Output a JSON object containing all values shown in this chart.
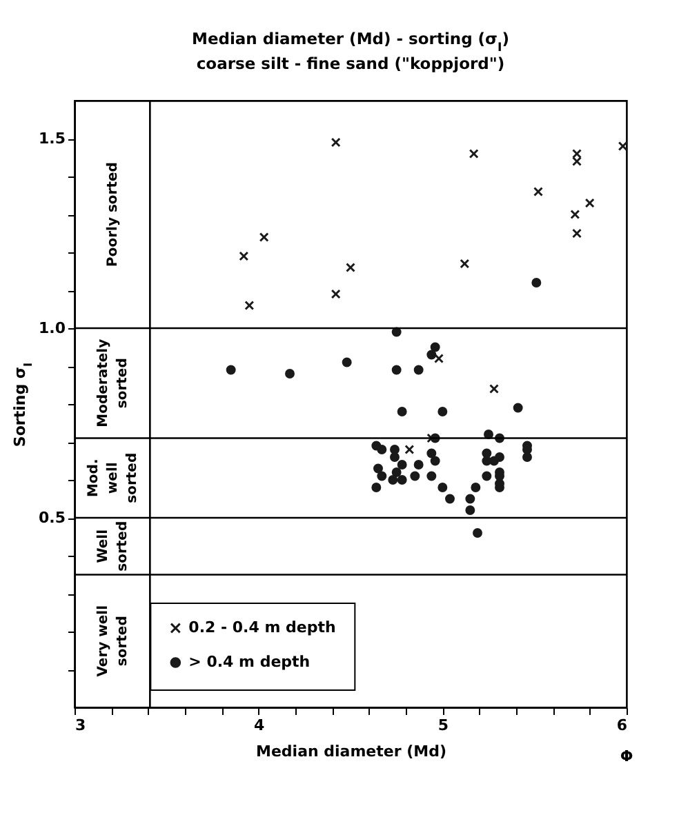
{
  "chart_data": {
    "type": "scatter",
    "title": [
      "Median diameter (Md) - sorting (σ$_{I}$)",
      "coarse silt - fine sand (\"koppjord\")"
    ],
    "xlabel": "Median diameter (Md)",
    "ylabel": "Sorting σ$_{I}$",
    "annotations": [
      "Φ",
      "Poorly sorted",
      "Moderately\nsorted",
      "Mod.\nwell\nsorted",
      "Well\nsorted",
      "Very well\nsorted"
    ],
    "xlim": [
      3,
      6
    ],
    "ylim": [
      0,
      1.6
    ],
    "xticks": [
      3,
      {
        "value": 3.2,
        "label": null
      },
      {
        "value": 3.4,
        "label": null
      },
      {
        "value": 3.6,
        "label": null
      },
      {
        "value": 3.8,
        "label": null
      },
      4,
      {
        "value": 4.2,
        "label": null
      },
      {
        "value": 4.4,
        "label": null
      },
      {
        "value": 4.6,
        "label": null
      },
      {
        "value": 4.8,
        "label": null
      },
      5,
      {
        "value": 5.2,
        "label": null
      },
      {
        "value": 5.4,
        "label": null
      },
      {
        "value": 5.6,
        "label": null
      },
      {
        "value": 5.8,
        "label": null
      },
      6
    ],
    "yticks": [
      {
        "value": 0.1,
        "label": null
      },
      {
        "value": 0.2,
        "label": null
      },
      {
        "value": 0.3,
        "label": null
      },
      {
        "value": 0.4,
        "label": null
      },
      0.5,
      {
        "value": 0.6,
        "label": null
      },
      {
        "value": 0.7,
        "label": null
      },
      {
        "value": 0.8,
        "label": null
      },
      {
        "value": 0.9,
        "label": null
      },
      {
        "value": 1,
        "label": "1.0"
      },
      {
        "value": 1.1,
        "label": null
      },
      {
        "value": 1.2,
        "label": null
      },
      {
        "value": 1.3,
        "label": null
      },
      {
        "value": 1.4,
        "label": null
      },
      1.5
    ],
    "legend": "bottom left",
    "ref_lines": [
      {
        "axis": "x",
        "value": 3.41,
        "label": null,
        "color": "#000000"
      },
      {
        "axis": "y",
        "value": 1.0,
        "label": null,
        "color": "#000000"
      },
      {
        "axis": "y",
        "value": 0.71,
        "label": null,
        "color": "#000000"
      },
      {
        "axis": "y",
        "value": 0.5,
        "label": null,
        "color": "#000000"
      },
      {
        "axis": "y",
        "value": 0.35,
        "label": null,
        "color": "#000000"
      }
    ],
    "series": [
      {
        "name": "0.2 - 0.4 m depth",
        "color": "#1a1a1a",
        "marker": "cross",
        "x": [
          4.42,
          5.17,
          5.73,
          5.73,
          5.98,
          5.52,
          5.8,
          5.72,
          5.73,
          4.03,
          3.92,
          4.5,
          5.12,
          4.42,
          3.95,
          4.98,
          5.28,
          4.82,
          4.94
        ],
        "values": [
          1.49,
          1.46,
          1.46,
          1.44,
          1.48,
          1.36,
          1.33,
          1.3,
          1.25,
          1.24,
          1.19,
          1.16,
          1.17,
          1.09,
          1.06,
          0.92,
          0.84,
          0.68,
          0.71
        ]
      },
      {
        "name": "> 0.4 m depth",
        "color": "#1a1a1a",
        "marker": "circle",
        "x": [
          5.51,
          4.75,
          4.96,
          4.94,
          3.85,
          4.17,
          4.48,
          4.75,
          4.87,
          4.78,
          5.0,
          5.41,
          4.96,
          5.25,
          5.31,
          4.64,
          4.67,
          4.74,
          4.74,
          4.78,
          4.87,
          4.94,
          4.96,
          4.65,
          4.67,
          4.73,
          4.75,
          4.78,
          4.85,
          4.94,
          4.64,
          5.0,
          5.04,
          5.24,
          5.24,
          5.28,
          5.31,
          5.31,
          5.31,
          5.31,
          5.31,
          5.24,
          5.18,
          5.15,
          5.15,
          5.19,
          5.46,
          5.46,
          5.46
        ],
        "values": [
          1.12,
          0.99,
          0.95,
          0.93,
          0.89,
          0.88,
          0.91,
          0.89,
          0.89,
          0.78,
          0.78,
          0.79,
          0.71,
          0.72,
          0.71,
          0.69,
          0.68,
          0.68,
          0.66,
          0.64,
          0.64,
          0.67,
          0.65,
          0.63,
          0.61,
          0.6,
          0.62,
          0.6,
          0.61,
          0.61,
          0.58,
          0.58,
          0.55,
          0.67,
          0.65,
          0.65,
          0.66,
          0.62,
          0.61,
          0.59,
          0.58,
          0.61,
          0.58,
          0.55,
          0.52,
          0.46,
          0.69,
          0.68,
          0.66
        ]
      }
    ]
  }
}
